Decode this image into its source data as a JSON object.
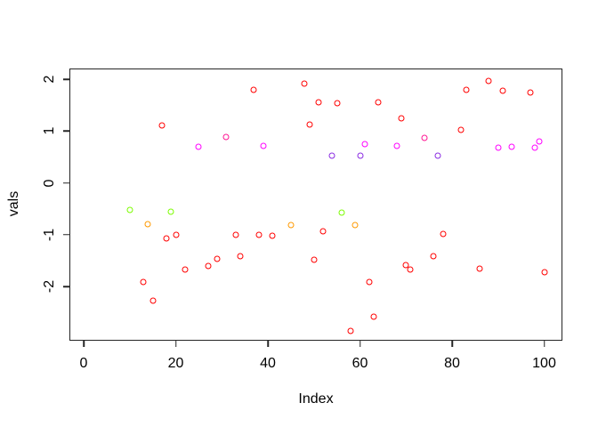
{
  "chart_data": {
    "type": "scatter",
    "title": "",
    "xlabel": "Index",
    "ylabel": "vals",
    "xlim": [
      0,
      100
    ],
    "ylim": [
      -3.05,
      2.2
    ],
    "x_ticks": [
      "0",
      "20",
      "40",
      "60",
      "80",
      "100"
    ],
    "x_tick_values": [
      0,
      20,
      40,
      60,
      80,
      100
    ],
    "y_ticks": [
      "-2",
      "-1",
      "0",
      "1",
      "2"
    ],
    "y_tick_values": [
      -2,
      -1,
      0,
      1,
      2
    ],
    "grid": false,
    "legend": "none",
    "marker": "open-circle",
    "colors": {
      "red": "#FF0000",
      "orange": "#FF9900",
      "green": "#7CFC00",
      "magenta": "#FF00FF",
      "deeppink": "#FF1493",
      "purple": "#8A2BE2"
    },
    "points": [
      {
        "x": 10,
        "y": -0.53,
        "c": "green"
      },
      {
        "x": 13,
        "y": -1.91,
        "c": "red"
      },
      {
        "x": 14,
        "y": -0.8,
        "c": "orange"
      },
      {
        "x": 15,
        "y": -2.27,
        "c": "red"
      },
      {
        "x": 17,
        "y": 1.1,
        "c": "red"
      },
      {
        "x": 18,
        "y": -1.08,
        "c": "red"
      },
      {
        "x": 19,
        "y": -0.55,
        "c": "green"
      },
      {
        "x": 20,
        "y": -1.0,
        "c": "red"
      },
      {
        "x": 22,
        "y": -1.67,
        "c": "red"
      },
      {
        "x": 25,
        "y": 0.7,
        "c": "magenta"
      },
      {
        "x": 27,
        "y": -1.61,
        "c": "red"
      },
      {
        "x": 29,
        "y": -1.46,
        "c": "red"
      },
      {
        "x": 31,
        "y": 0.89,
        "c": "deeppink"
      },
      {
        "x": 33,
        "y": -1.0,
        "c": "red"
      },
      {
        "x": 34,
        "y": -1.42,
        "c": "red"
      },
      {
        "x": 37,
        "y": 1.79,
        "c": "red"
      },
      {
        "x": 38,
        "y": -1.01,
        "c": "red"
      },
      {
        "x": 39,
        "y": 0.72,
        "c": "magenta"
      },
      {
        "x": 41,
        "y": -1.03,
        "c": "red"
      },
      {
        "x": 45,
        "y": -0.82,
        "c": "orange"
      },
      {
        "x": 48,
        "y": 1.91,
        "c": "red"
      },
      {
        "x": 49,
        "y": 1.12,
        "c": "red"
      },
      {
        "x": 50,
        "y": -1.48,
        "c": "red"
      },
      {
        "x": 51,
        "y": 1.55,
        "c": "red"
      },
      {
        "x": 52,
        "y": -0.94,
        "c": "red"
      },
      {
        "x": 54,
        "y": 0.52,
        "c": "purple"
      },
      {
        "x": 55,
        "y": 1.53,
        "c": "red"
      },
      {
        "x": 56,
        "y": -0.58,
        "c": "green"
      },
      {
        "x": 58,
        "y": -2.85,
        "c": "red"
      },
      {
        "x": 59,
        "y": -0.82,
        "c": "orange"
      },
      {
        "x": 60,
        "y": 0.53,
        "c": "purple"
      },
      {
        "x": 61,
        "y": 0.74,
        "c": "magenta"
      },
      {
        "x": 62,
        "y": -1.92,
        "c": "red"
      },
      {
        "x": 63,
        "y": -2.59,
        "c": "red"
      },
      {
        "x": 64,
        "y": 1.55,
        "c": "red"
      },
      {
        "x": 68,
        "y": 0.72,
        "c": "magenta"
      },
      {
        "x": 69,
        "y": 1.24,
        "c": "red"
      },
      {
        "x": 70,
        "y": -1.58,
        "c": "red"
      },
      {
        "x": 71,
        "y": -1.68,
        "c": "red"
      },
      {
        "x": 74,
        "y": 0.86,
        "c": "deeppink"
      },
      {
        "x": 76,
        "y": -1.42,
        "c": "red"
      },
      {
        "x": 77,
        "y": 0.53,
        "c": "purple"
      },
      {
        "x": 78,
        "y": -0.98,
        "c": "red"
      },
      {
        "x": 82,
        "y": 1.03,
        "c": "red"
      },
      {
        "x": 83,
        "y": 1.79,
        "c": "red"
      },
      {
        "x": 86,
        "y": -1.65,
        "c": "red"
      },
      {
        "x": 88,
        "y": 1.97,
        "c": "red"
      },
      {
        "x": 90,
        "y": 0.67,
        "c": "magenta"
      },
      {
        "x": 91,
        "y": 1.77,
        "c": "red"
      },
      {
        "x": 93,
        "y": 0.69,
        "c": "magenta"
      },
      {
        "x": 97,
        "y": 1.75,
        "c": "red"
      },
      {
        "x": 98,
        "y": 0.67,
        "c": "magenta"
      },
      {
        "x": 99,
        "y": 0.79,
        "c": "magenta"
      },
      {
        "x": 100,
        "y": -1.73,
        "c": "red"
      }
    ]
  }
}
